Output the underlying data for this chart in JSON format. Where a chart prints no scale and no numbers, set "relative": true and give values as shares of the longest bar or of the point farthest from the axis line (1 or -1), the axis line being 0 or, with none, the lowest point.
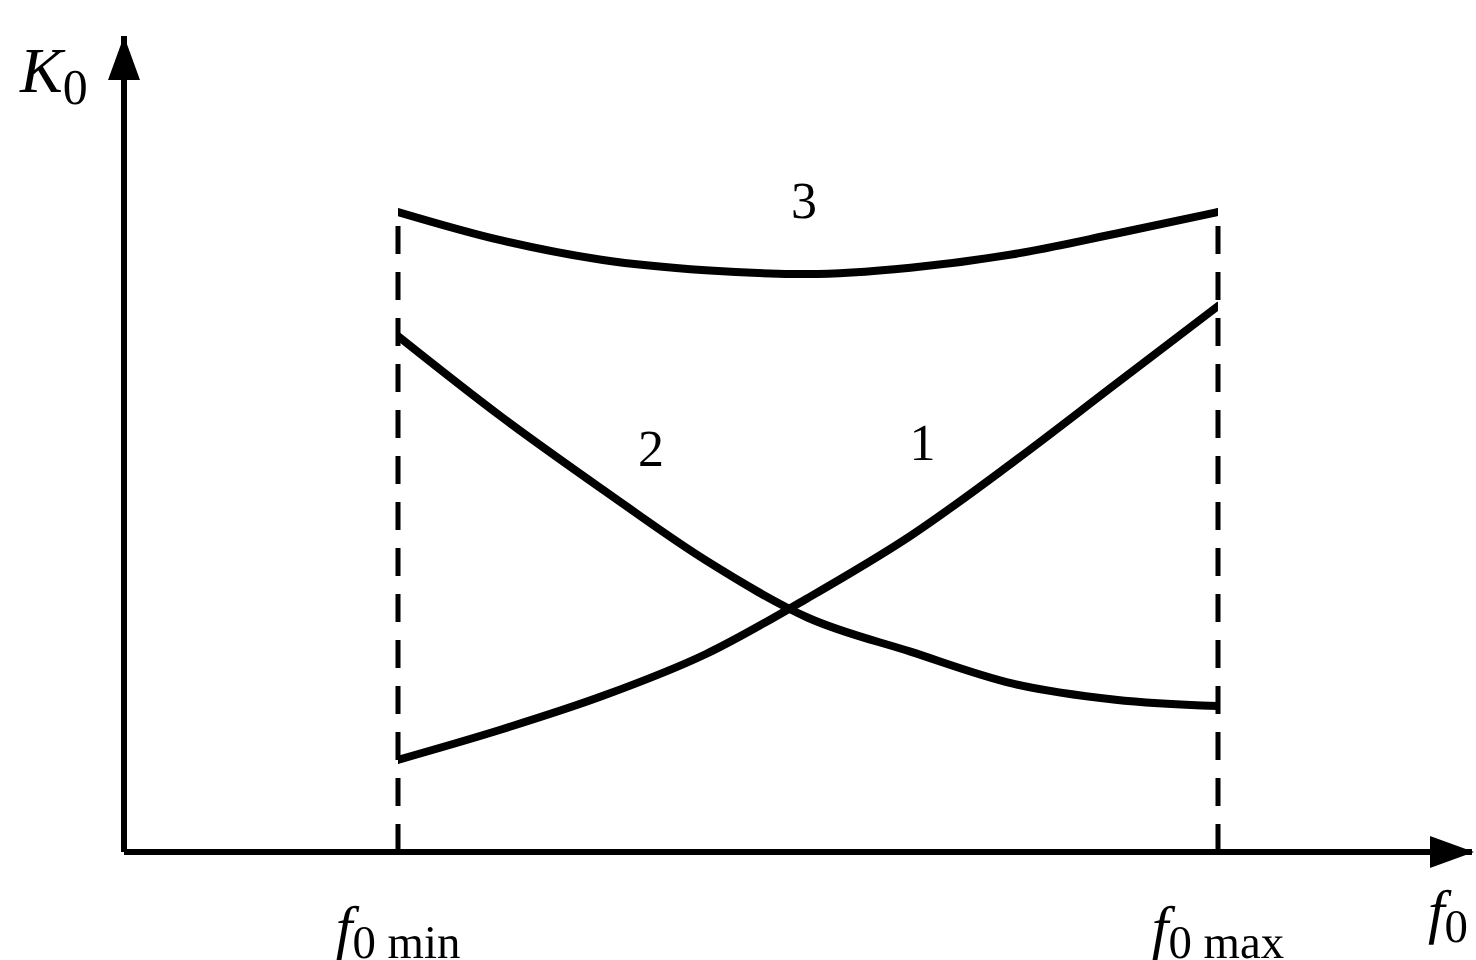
{
  "chart_data": {
    "type": "line",
    "relative": true,
    "xlabel": "f$_{0}$",
    "ylabel": "K$_{0}$",
    "categories": [
      "f$_{0 min}$",
      null,
      null,
      null,
      null,
      null,
      null,
      null,
      "f$_{0 max}$"
    ],
    "series": [
      {
        "name": "1",
        "color": "#000000",
        "values": [
          0.144,
          0.191,
          0.244,
          0.309,
          0.397,
          0.494,
          0.609,
          0.731,
          0.853
        ]
      },
      {
        "name": "2",
        "color": "#000000",
        "values": [
          0.806,
          0.681,
          0.566,
          0.456,
          0.366,
          0.313,
          0.263,
          0.238,
          0.228
        ]
      },
      {
        "name": "3",
        "color": "#000000",
        "values": [
          1.0,
          0.956,
          0.925,
          0.909,
          0.903,
          0.913,
          0.934,
          0.966,
          1.0
        ]
      }
    ],
    "ref_lines": [
      {
        "axis": "x",
        "value": "f$_{0 min}$",
        "line_style": "dashed",
        "color": "#000000"
      },
      {
        "axis": "x",
        "value": "f$_{0 max}$",
        "line_style": "dashed",
        "color": "#000000"
      }
    ],
    "marker": "none",
    "line_style": "solid"
  }
}
